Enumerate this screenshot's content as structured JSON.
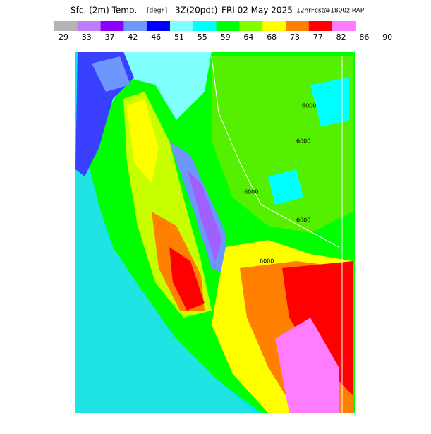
{
  "header": {
    "title_parts": [
      "Sfc. (2m) Temp.",
      "[degF]",
      "3Z(20pdt)",
      "FRI 02 May 2025",
      "12hrFcst@1800z RAP"
    ]
  },
  "legend": {
    "colors": [
      "#b4b4b4",
      "#c07cff",
      "#8c00ff",
      "#6e96ff",
      "#0000ff",
      "#80ffff",
      "#00ffff",
      "#00ff00",
      "#80ff00",
      "#ffff00",
      "#ff8000",
      "#ff0000",
      "#ff7cff"
    ],
    "labels": [
      29,
      33,
      37,
      42,
      46,
      51,
      55,
      59,
      64,
      68,
      73,
      77,
      82,
      86,
      90
    ]
  },
  "map": {
    "contour_labels": [
      "6000",
      "6000",
      "6000",
      "6000",
      "6000"
    ]
  }
}
